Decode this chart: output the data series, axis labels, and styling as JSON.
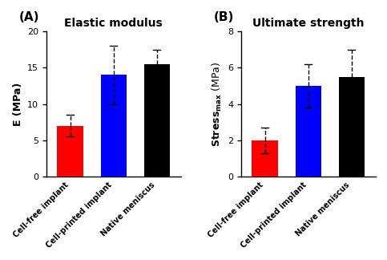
{
  "panel_A": {
    "title": "Elastic modulus",
    "ylabel": "E (MPa)",
    "categories": [
      "Cell-free implant",
      "Cell-printed implant",
      "Native meniscus"
    ],
    "values": [
      7.0,
      14.0,
      15.5
    ],
    "errors": [
      1.5,
      4.0,
      2.0
    ],
    "colors": [
      "#FF0000",
      "#0000FF",
      "#000000"
    ],
    "ylim": [
      0,
      20
    ],
    "yticks": [
      0,
      5,
      10,
      15,
      20
    ],
    "panel_label": "(A)"
  },
  "panel_B": {
    "title": "Ultimate strength",
    "ylabel_main": "Stress",
    "ylabel_sub": "max",
    "ylabel_unit": " (MPa)",
    "categories": [
      "Cell-free implant",
      "Cell-printed implant",
      "Native meniscus"
    ],
    "values": [
      2.0,
      5.0,
      5.5
    ],
    "errors": [
      0.7,
      1.2,
      1.5
    ],
    "colors": [
      "#FF0000",
      "#0000FF",
      "#000000"
    ],
    "ylim": [
      0,
      8
    ],
    "yticks": [
      0,
      2,
      4,
      6,
      8
    ],
    "panel_label": "(B)"
  },
  "bar_width": 0.6,
  "figsize": [
    4.83,
    3.24
  ],
  "dpi": 100
}
